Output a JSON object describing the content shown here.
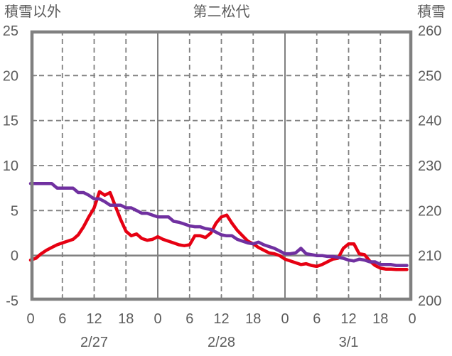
{
  "header": {
    "left_axis_title": "積雪以外",
    "chart_title": "第二松代",
    "right_axis_title": "積雪"
  },
  "chart_data": {
    "type": "line",
    "title": "第二松代",
    "grid": true,
    "legend": "none",
    "colors": {
      "other_series": "#e60012",
      "snow_series": "#7030a0",
      "grid": "#808080",
      "text": "#5c5c5c"
    },
    "left_axis": {
      "label": "積雪以外",
      "min": -5,
      "max": 25,
      "ticks": [
        -5,
        0,
        5,
        10,
        15,
        20,
        25
      ]
    },
    "right_axis": {
      "label": "積雪",
      "min": 200,
      "max": 260,
      "ticks": [
        200,
        210,
        220,
        230,
        240,
        250,
        260
      ]
    },
    "x_axis": {
      "unit": "hour",
      "min": 0,
      "max": 72,
      "tick_interval": 6,
      "tick_labels": [
        "0",
        "6",
        "12",
        "18",
        "0",
        "6",
        "12",
        "18",
        "0",
        "6",
        "12",
        "18",
        "0"
      ],
      "day_labels": [
        {
          "label": "2/27",
          "hour": 12
        },
        {
          "label": "2/28",
          "hour": 36
        },
        {
          "label": "3/1",
          "hour": 60
        }
      ]
    },
    "series": [
      {
        "name": "積雪以外",
        "axis": "left",
        "color": "#e60012",
        "hours": [
          0,
          1,
          2,
          3,
          4,
          5,
          6,
          7,
          8,
          9,
          10,
          11,
          12,
          13,
          14,
          15,
          16,
          17,
          18,
          19,
          20,
          21,
          22,
          23,
          24,
          25,
          26,
          27,
          28,
          29,
          30,
          31,
          32,
          33,
          34,
          35,
          36,
          37,
          38,
          39,
          40,
          41,
          42,
          43,
          44,
          45,
          46,
          47,
          48,
          49,
          50,
          51,
          52,
          53,
          54,
          55,
          56,
          57,
          58,
          59,
          60,
          61,
          62,
          63,
          64,
          65,
          66,
          67,
          68,
          69,
          70,
          71
        ],
        "values": [
          -0.5,
          -0.3,
          0.2,
          0.6,
          0.9,
          1.2,
          1.4,
          1.6,
          1.8,
          2.3,
          3.2,
          4.3,
          5.3,
          7.1,
          6.7,
          7.0,
          5.5,
          4.0,
          2.7,
          2.2,
          2.4,
          1.9,
          1.7,
          1.8,
          2.1,
          1.8,
          1.6,
          1.4,
          1.2,
          1.1,
          1.2,
          2.2,
          2.2,
          2.0,
          2.5,
          3.6,
          4.3,
          4.5,
          3.6,
          2.8,
          2.2,
          1.6,
          1.3,
          0.9,
          0.6,
          0.3,
          0.2,
          0.0,
          -0.4,
          -0.6,
          -0.8,
          -1.0,
          -0.9,
          -1.1,
          -1.2,
          -1.0,
          -0.7,
          -0.4,
          -0.3,
          0.8,
          1.3,
          1.3,
          0.2,
          0.1,
          -0.6,
          -1.1,
          -1.4,
          -1.5,
          -1.5,
          -1.55,
          -1.55,
          -1.55
        ]
      },
      {
        "name": "積雪",
        "axis": "right",
        "color": "#7030a0",
        "hours": [
          0,
          1,
          2,
          3,
          4,
          5,
          6,
          7,
          8,
          9,
          10,
          11,
          12,
          13,
          14,
          15,
          16,
          17,
          18,
          19,
          20,
          21,
          22,
          23,
          24,
          25,
          26,
          27,
          28,
          29,
          30,
          31,
          32,
          33,
          34,
          35,
          36,
          37,
          38,
          39,
          40,
          41,
          42,
          43,
          44,
          45,
          46,
          47,
          48,
          49,
          50,
          51,
          52,
          53,
          54,
          55,
          56,
          57,
          58,
          59,
          60,
          61,
          62,
          63,
          64,
          65,
          66,
          67,
          68,
          69,
          70,
          71
        ],
        "values": [
          226,
          226,
          226,
          226,
          226,
          225,
          225,
          225,
          225,
          224,
          224,
          223.4,
          222.6,
          222.6,
          222,
          221.2,
          221.2,
          221.2,
          220.6,
          220.6,
          220,
          219.4,
          219.4,
          219,
          218.6,
          218.6,
          218.6,
          217.6,
          217.4,
          217,
          216.6,
          216.4,
          216.4,
          216,
          215.8,
          215.2,
          214.6,
          214.4,
          214.4,
          213.6,
          213.2,
          212.8,
          212.6,
          213,
          212.4,
          212,
          211.6,
          211,
          210.4,
          210.4,
          210.6,
          211.6,
          210.4,
          210.2,
          210,
          210,
          209.8,
          209.8,
          209.6,
          209.4,
          209,
          208.8,
          209.2,
          209,
          208.6,
          208.6,
          208,
          208,
          208,
          207.8,
          207.8,
          207.8
        ]
      }
    ]
  }
}
